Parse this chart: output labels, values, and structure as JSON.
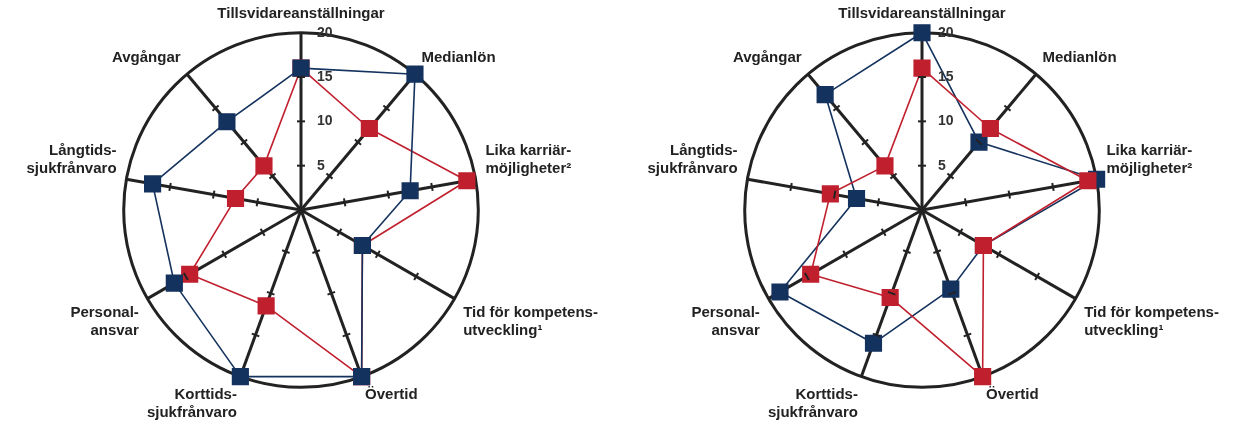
{
  "chart_data": [
    {
      "type": "radar",
      "categories": [
        "Tillsvidareanställningar",
        "Medianlön",
        "Lika karriär-\nmöjligheter²",
        "Tid för kompetens-\nutveckling¹",
        "Övertid",
        "Korttids-\nsjukfrånvaro",
        "Personal-\nansvar",
        "Långtids-\nsjukfrånvaro",
        "Avgångar"
      ],
      "series": [
        {
          "color": "#14325e",
          "values": [
            16,
            20,
            12.5,
            8,
            20,
            20,
            16.5,
            17,
            13
          ]
        },
        {
          "color": "#c0202e",
          "values": [
            16,
            12,
            19,
            8,
            20,
            11.5,
            14.5,
            7.5,
            6.5
          ]
        }
      ],
      "ylim": [
        0,
        20
      ],
      "yticks": [
        5,
        10,
        15,
        20
      ],
      "marker": "square"
    },
    {
      "type": "radar",
      "categories": [
        "Tillsvidareanställningar",
        "Medianlön",
        "Lika karriär-\nmöjligheter²",
        "Tid för kompetens-\nutveckling¹",
        "Övertid",
        "Korttids-\nsjukfrånvaro",
        "Personal-\nansvar",
        "Långtids-\nsjukfrånvaro",
        "Avgångar"
      ],
      "series": [
        {
          "color": "#c0202e",
          "values": [
            16,
            12,
            19,
            8,
            20,
            10.5,
            14.5,
            10.5,
            6.5
          ]
        },
        {
          "color": "#14325e",
          "values": [
            20,
            10,
            20,
            8,
            9.5,
            16,
            18.5,
            7.5,
            17
          ]
        }
      ],
      "ylim": [
        0,
        20
      ],
      "yticks": [
        5,
        10,
        15,
        20
      ],
      "marker": "square"
    }
  ]
}
